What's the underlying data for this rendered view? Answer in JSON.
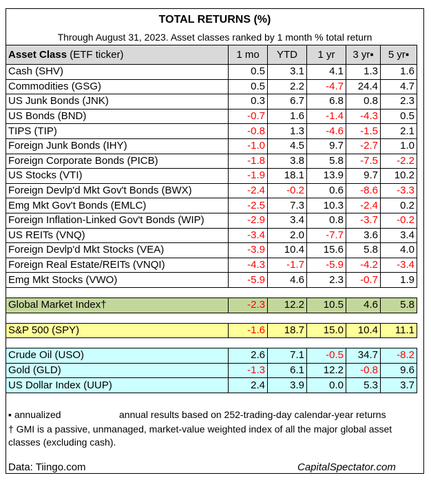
{
  "title": "TOTAL RETURNS (%)",
  "subtitle": "Through August 31, 2023. Asset classes ranked by 1 month % total return",
  "header": {
    "asset_bold": "Asset Class",
    "asset_rest": " (ETF ticker)",
    "columns": [
      "1 mo",
      "YTD",
      "1 yr",
      "3 yr▪",
      "5 yr▪"
    ]
  },
  "rows": [
    {
      "name": "Cash (SHV)",
      "values": [
        "0.5",
        "3.1",
        "4.1",
        "1.3",
        "1.6"
      ]
    },
    {
      "name": "Commodities (GSG)",
      "values": [
        "0.5",
        "2.2",
        "-4.7",
        "24.4",
        "4.7"
      ]
    },
    {
      "name": "US Junk Bonds (JNK)",
      "values": [
        "0.3",
        "6.7",
        "6.8",
        "0.8",
        "2.3"
      ]
    },
    {
      "name": "US Bonds (BND)",
      "values": [
        "-0.7",
        "1.6",
        "-1.4",
        "-4.3",
        "0.5"
      ]
    },
    {
      "name": "TIPS (TIP)",
      "values": [
        "-0.8",
        "1.3",
        "-4.6",
        "-1.5",
        "2.1"
      ]
    },
    {
      "name": "Foreign Junk Bonds (IHY)",
      "values": [
        "-1.0",
        "4.5",
        "9.7",
        "-2.7",
        "1.0"
      ]
    },
    {
      "name": "Foreign Corporate Bonds (PICB)",
      "values": [
        "-1.8",
        "3.8",
        "5.8",
        "-7.5",
        "-2.2"
      ]
    },
    {
      "name": "US Stocks (VTI)",
      "values": [
        "-1.9",
        "18.1",
        "13.9",
        "9.7",
        "10.2"
      ]
    },
    {
      "name": "Foreign Devlp'd Mkt Gov't Bonds (BWX)",
      "values": [
        "-2.4",
        "-0.2",
        "0.6",
        "-8.6",
        "-3.3"
      ]
    },
    {
      "name": "Emg Mkt Gov't Bonds (EMLC)",
      "values": [
        "-2.5",
        "7.3",
        "10.3",
        "-2.4",
        "0.2"
      ]
    },
    {
      "name": "Foreign Inflation-Linked Gov't Bonds (WIP)",
      "values": [
        "-2.9",
        "3.4",
        "0.8",
        "-3.7",
        "-0.2"
      ]
    },
    {
      "name": "US REITs (VNQ)",
      "values": [
        "-3.4",
        "2.0",
        "-7.7",
        "3.6",
        "3.4"
      ]
    },
    {
      "name": "Foreign Devlp'd Mkt Stocks (VEA)",
      "values": [
        "-3.9",
        "10.4",
        "15.6",
        "5.8",
        "4.0"
      ]
    },
    {
      "name": "Foreign Real Estate/REITs (VNQI)",
      "values": [
        "-4.3",
        "-1.7",
        "-5.9",
        "-4.2",
        "-3.4"
      ]
    },
    {
      "name": "Emg Mkt Stocks (VWO)",
      "values": [
        "-5.9",
        "4.6",
        "2.3",
        "-0.7",
        "1.9"
      ]
    }
  ],
  "gmi": {
    "name": "Global Market Index†",
    "values": [
      "-2.3",
      "12.2",
      "10.5",
      "4.6",
      "5.8"
    ]
  },
  "spy": {
    "name": "S&P 500 (SPY)",
    "values": [
      "-1.6",
      "18.7",
      "15.0",
      "10.4",
      "11.1"
    ]
  },
  "alternatives": [
    {
      "name": "Crude Oil (USO)",
      "values": [
        "2.6",
        "7.1",
        "-0.5",
        "34.7",
        "-8.2"
      ]
    },
    {
      "name": "Gold (GLD)",
      "values": [
        "-1.3",
        "6.1",
        "12.2",
        "-0.8",
        "9.6"
      ]
    },
    {
      "name": "US Dollar Index (UUP)",
      "values": [
        "2.4",
        "3.9",
        "0.0",
        "5.3",
        "3.7"
      ]
    }
  ],
  "notes": {
    "annualized": "▪ annualized",
    "annual_basis": "annual results based on 252-trading-day calendar-year returns",
    "gmi_note": "† GMI is a passive, unmanaged, market-value weighted index of all the major global asset classes (excluding cash).",
    "source": "Data: Tiingo.com",
    "brand": "CapitalSpectator.com"
  },
  "colors": {
    "header": "#d9d9d9",
    "gmi": "#c4d79b",
    "spy": "#ffff99",
    "alternatives": "#ccffff",
    "negative": "#ff0000"
  }
}
